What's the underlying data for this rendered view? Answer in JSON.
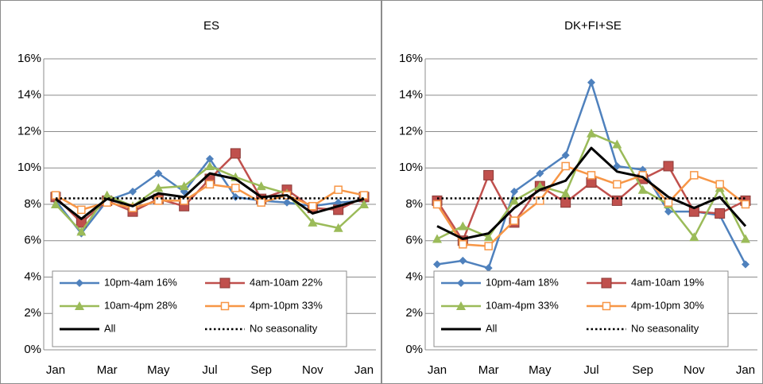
{
  "chart_data": [
    {
      "type": "line",
      "title": "ES",
      "categories": [
        "Jan",
        null,
        "Mar",
        null,
        "May",
        null,
        "Jul",
        null,
        "Sep",
        null,
        "Nov",
        null,
        "Jan"
      ],
      "ylim": [
        0,
        16
      ],
      "yticks": [
        {
          "value": 0,
          "label": "0%"
        },
        {
          "value": 2,
          "label": "2%"
        },
        {
          "value": 4,
          "label": "4%"
        },
        {
          "value": 6,
          "label": "6%"
        },
        {
          "value": 8,
          "label": "8%"
        },
        {
          "value": 10,
          "label": "10%"
        },
        {
          "value": 12,
          "label": "12%"
        },
        {
          "value": 14,
          "label": "14%"
        },
        {
          "value": 16,
          "label": "16%"
        }
      ],
      "grid": true,
      "series": [
        {
          "name": "10pm-4am 16%",
          "color": "#4f81bd",
          "marker": "diamond",
          "values": [
            8.2,
            6.4,
            8.2,
            8.7,
            9.7,
            8.7,
            10.5,
            8.4,
            8.2,
            8.1,
            7.9,
            8.1,
            8.2
          ]
        },
        {
          "name": "4am-10am 22%",
          "color": "#c0504d",
          "marker": "square",
          "values": [
            8.4,
            7.0,
            8.2,
            7.6,
            8.3,
            7.9,
            9.4,
            10.8,
            8.3,
            8.8,
            7.8,
            7.7,
            8.4
          ]
        },
        {
          "name": "10am-4pm 28%",
          "color": "#9bbb59",
          "marker": "triangle",
          "values": [
            8.0,
            6.5,
            8.5,
            7.9,
            8.9,
            9.0,
            10.1,
            9.5,
            9.0,
            8.6,
            7.0,
            6.7,
            8.0
          ]
        },
        {
          "name": "4pm-10pm 33%",
          "color": "#f79646",
          "marker": "open-square",
          "values": [
            8.5,
            7.7,
            8.1,
            7.8,
            8.2,
            8.2,
            9.1,
            8.9,
            8.1,
            8.5,
            7.9,
            8.8,
            8.5
          ]
        },
        {
          "name": "All",
          "color": "#000000",
          "width": 3,
          "values": [
            8.3,
            7.2,
            8.3,
            7.9,
            8.6,
            8.4,
            9.7,
            9.4,
            8.4,
            8.5,
            7.5,
            7.9,
            8.3
          ]
        },
        {
          "name": "No seasonality",
          "color": "#000000",
          "dash": "dotted",
          "values": [
            8.33,
            8.33,
            8.33,
            8.33,
            8.33,
            8.33,
            8.33,
            8.33,
            8.33,
            8.33,
            8.33,
            8.33,
            8.33
          ]
        }
      ]
    },
    {
      "type": "line",
      "title": "DK+FI+SE",
      "categories": [
        "Jan",
        null,
        "Mar",
        null,
        "May",
        null,
        "Jul",
        null,
        "Sep",
        null,
        "Nov",
        null,
        "Jan"
      ],
      "ylim": [
        0,
        16
      ],
      "yticks": [
        {
          "value": 0,
          "label": "0%"
        },
        {
          "value": 2,
          "label": "2%"
        },
        {
          "value": 4,
          "label": "4%"
        },
        {
          "value": 6,
          "label": "6%"
        },
        {
          "value": 8,
          "label": "8%"
        },
        {
          "value": 10,
          "label": "10%"
        },
        {
          "value": 12,
          "label": "12%"
        },
        {
          "value": 14,
          "label": "14%"
        },
        {
          "value": 16,
          "label": "16%"
        }
      ],
      "grid": true,
      "series": [
        {
          "name": "10pm-4am 18%",
          "color": "#4f81bd",
          "marker": "diamond",
          "values": [
            4.7,
            4.9,
            4.5,
            8.7,
            9.7,
            10.7,
            14.7,
            10.1,
            9.9,
            7.6,
            7.6,
            7.4,
            4.7
          ]
        },
        {
          "name": "4am-10am 19%",
          "color": "#c0504d",
          "marker": "square",
          "values": [
            8.2,
            6.0,
            9.6,
            7.0,
            9.0,
            8.1,
            9.2,
            8.2,
            9.4,
            10.1,
            7.6,
            7.5,
            8.2
          ]
        },
        {
          "name": "10am-4pm 33%",
          "color": "#9bbb59",
          "marker": "triangle",
          "values": [
            6.1,
            6.8,
            6.2,
            8.2,
            9.0,
            8.6,
            11.9,
            11.3,
            8.8,
            8.0,
            6.2,
            8.9,
            6.1
          ]
        },
        {
          "name": "4pm-10pm 30%",
          "color": "#f79646",
          "marker": "open-square",
          "values": [
            8.0,
            5.8,
            5.7,
            7.1,
            8.2,
            10.1,
            9.6,
            9.1,
            9.6,
            8.1,
            9.6,
            9.1,
            8.0
          ]
        },
        {
          "name": "All",
          "color": "#000000",
          "width": 3,
          "values": [
            6.8,
            6.1,
            6.4,
            7.8,
            8.8,
            9.3,
            11.1,
            9.8,
            9.5,
            8.4,
            7.8,
            8.4,
            6.8
          ]
        },
        {
          "name": "No seasonality",
          "color": "#000000",
          "dash": "dotted",
          "values": [
            8.33,
            8.33,
            8.33,
            8.33,
            8.33,
            8.33,
            8.33,
            8.33,
            8.33,
            8.33,
            8.33,
            8.33,
            8.33
          ]
        }
      ]
    }
  ]
}
